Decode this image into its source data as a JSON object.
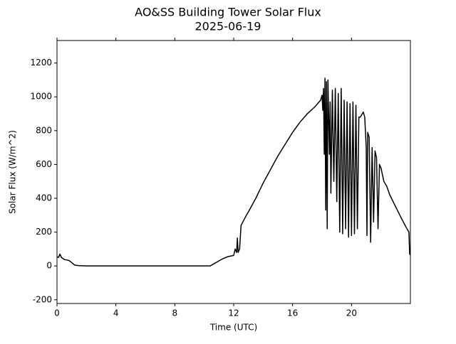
{
  "chart_data": {
    "type": "line",
    "title": "AO&SS Building Tower Solar Flux",
    "subtitle": "2025-06-19",
    "x_label": "Time (UTC)",
    "y_label": "Solar Flux (W/m^2)",
    "xlim": [
      0,
      24
    ],
    "ylim": [
      -222,
      1333
    ],
    "xticks": [
      0,
      4,
      8,
      12,
      16,
      20
    ],
    "yticks": [
      -200,
      0,
      200,
      400,
      600,
      800,
      1000,
      1200
    ],
    "series": [
      {
        "name": "Solar Flux",
        "color": "#000000",
        "x": [
          0,
          0.1,
          0.2,
          0.3,
          0.5,
          0.8,
          1.0,
          1.2,
          1.5,
          2,
          10.4,
          10.8,
          11.2,
          11.6,
          12,
          12.1,
          12.2,
          12.25,
          12.3,
          12.4,
          12.5,
          12.8,
          13,
          13.5,
          14,
          14.5,
          15,
          15.5,
          16,
          16.5,
          17,
          17.5,
          17.9,
          18.0,
          18.05,
          18.1,
          18.15,
          18.2,
          18.25,
          18.3,
          18.35,
          18.4,
          18.5,
          18.55,
          18.6,
          18.7,
          18.8,
          18.9,
          19.0,
          19.1,
          19.2,
          19.3,
          19.4,
          19.5,
          19.6,
          19.7,
          19.8,
          19.9,
          20.0,
          20.1,
          20.2,
          20.3,
          20.4,
          20.5,
          20.6,
          20.8,
          20.9,
          21.0,
          21.05,
          21.1,
          21.2,
          21.3,
          21.4,
          21.5,
          21.6,
          21.7,
          21.8,
          21.9,
          22,
          22.2,
          22.4,
          22.6,
          23,
          23.4,
          23.7,
          23.9,
          23.95,
          24
        ],
        "values": [
          55,
          50,
          70,
          50,
          38,
          33,
          20,
          5,
          2,
          0,
          0,
          20,
          40,
          55,
          62,
          100,
          80,
          165,
          80,
          100,
          240,
          290,
          320,
          400,
          490,
          570,
          650,
          720,
          790,
          850,
          900,
          940,
          980,
          1010,
          920,
          1050,
          660,
          1110,
          330,
          1090,
          220,
          1100,
          660,
          970,
          430,
          1040,
          500,
          1050,
          380,
          1020,
          200,
          1050,
          190,
          980,
          220,
          970,
          170,
          960,
          180,
          970,
          190,
          950,
          220,
          880,
          880,
          910,
          880,
          700,
          180,
          790,
          760,
          140,
          700,
          260,
          680,
          640,
          220,
          600,
          580,
          500,
          470,
          420,
          350,
          280,
          230,
          200,
          70,
          65
        ]
      }
    ]
  }
}
